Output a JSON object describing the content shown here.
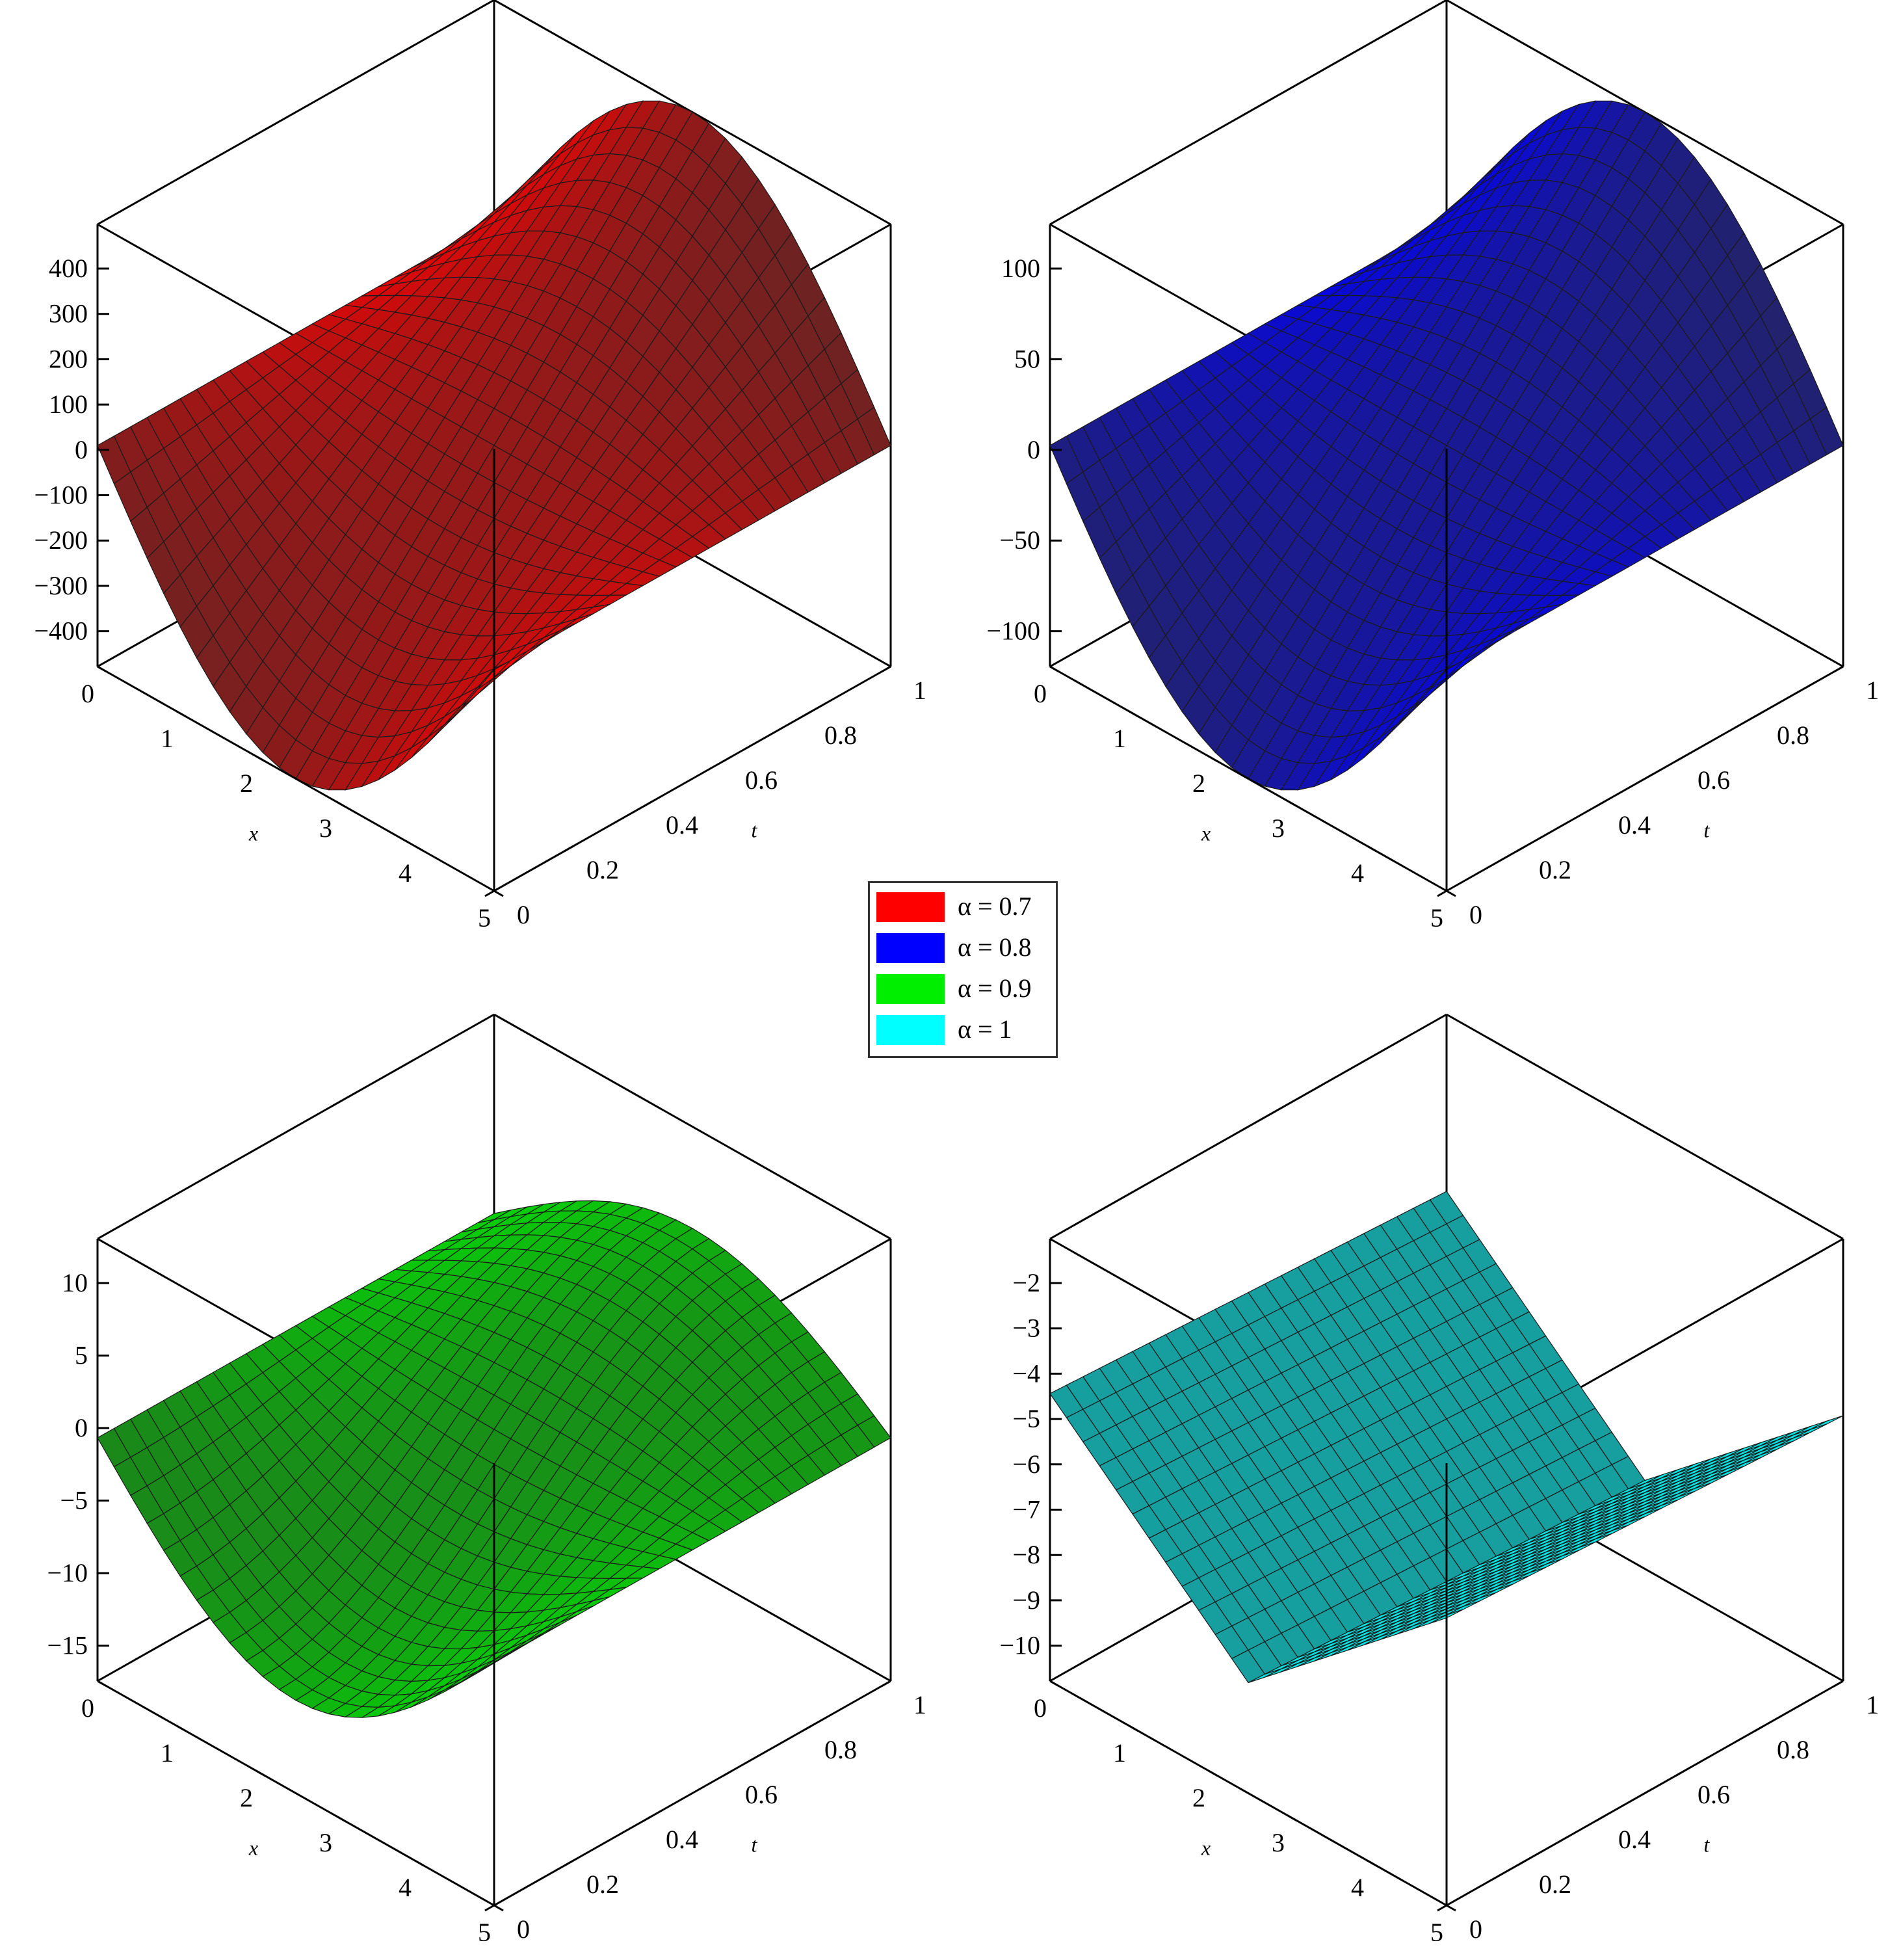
{
  "chart_data": [
    {
      "type": "surface",
      "series_name": "α = 0.7",
      "color": "#ff0000",
      "x_axis": {
        "label": "x",
        "ticks": [
          "0",
          "1",
          "2",
          "3",
          "4",
          "5"
        ],
        "range": [
          0,
          5
        ]
      },
      "t_axis": {
        "label": "t",
        "ticks": [
          "0",
          "0.2",
          "0.4",
          "0.6",
          "0.8",
          "1"
        ],
        "range": [
          0,
          1
        ]
      },
      "z_axis": {
        "ticks": [
          "400",
          "300",
          "200",
          "100",
          "0",
          "−100",
          "−200",
          "−300",
          "−400"
        ],
        "range": [
          -480,
          480
        ]
      },
      "corner_values": {
        "x0_t0": 0,
        "x0_t1": 0,
        "x5_t0": 0,
        "x5_t1": 0
      },
      "grid": "surface mesh"
    },
    {
      "type": "surface",
      "series_name": "α = 0.8",
      "color": "#0000ff",
      "x_axis": {
        "label": "x",
        "ticks": [
          "0",
          "1",
          "2",
          "3",
          "4",
          "5"
        ],
        "range": [
          0,
          5
        ]
      },
      "t_axis": {
        "label": "t",
        "ticks": [
          "0",
          "0.2",
          "0.4",
          "0.6",
          "0.8",
          "1"
        ],
        "range": [
          0,
          1
        ]
      },
      "z_axis": {
        "ticks": [
          "100",
          "50",
          "0",
          "−50",
          "−100"
        ],
        "range": [
          -110,
          110
        ]
      },
      "grid": "surface mesh"
    },
    {
      "type": "surface",
      "series_name": "α = 0.9",
      "color": "#00ee00",
      "x_axis": {
        "label": "x",
        "ticks": [
          "0",
          "1",
          "2",
          "3",
          "4",
          "5"
        ],
        "range": [
          0,
          5
        ]
      },
      "t_axis": {
        "label": "t",
        "ticks": [
          "0",
          "0.2",
          "0.4",
          "0.6",
          "0.8",
          "1"
        ],
        "range": [
          0,
          1
        ]
      },
      "z_axis": {
        "ticks": [
          "10",
          "5",
          "0",
          "−5",
          "−10",
          "−15"
        ],
        "range": [
          -18,
          13
        ]
      },
      "grid": "surface mesh"
    },
    {
      "type": "surface",
      "series_name": "α = 1",
      "color": "#00ffff",
      "x_axis": {
        "label": "x",
        "ticks": [
          "0",
          "1",
          "2",
          "3",
          "4",
          "5"
        ],
        "range": [
          0,
          5
        ]
      },
      "t_axis": {
        "label": "t",
        "ticks": [
          "0",
          "0.2",
          "0.4",
          "0.6",
          "0.8",
          "1"
        ],
        "range": [
          0,
          1
        ]
      },
      "z_axis": {
        "ticks": [
          "−2",
          "−3",
          "−4",
          "−5",
          "−6",
          "−7",
          "−8",
          "−9",
          "−10"
        ],
        "range": [
          -11,
          -1
        ]
      },
      "grid": "surface mesh"
    }
  ],
  "legend": {
    "items": [
      {
        "label": "α = 0.7",
        "color": "#ff0000"
      },
      {
        "label": "α = 0.8",
        "color": "#0000ff"
      },
      {
        "label": "α = 0.9",
        "color": "#00ee00"
      },
      {
        "label": "α = 1",
        "color": "#00ffff"
      }
    ]
  }
}
